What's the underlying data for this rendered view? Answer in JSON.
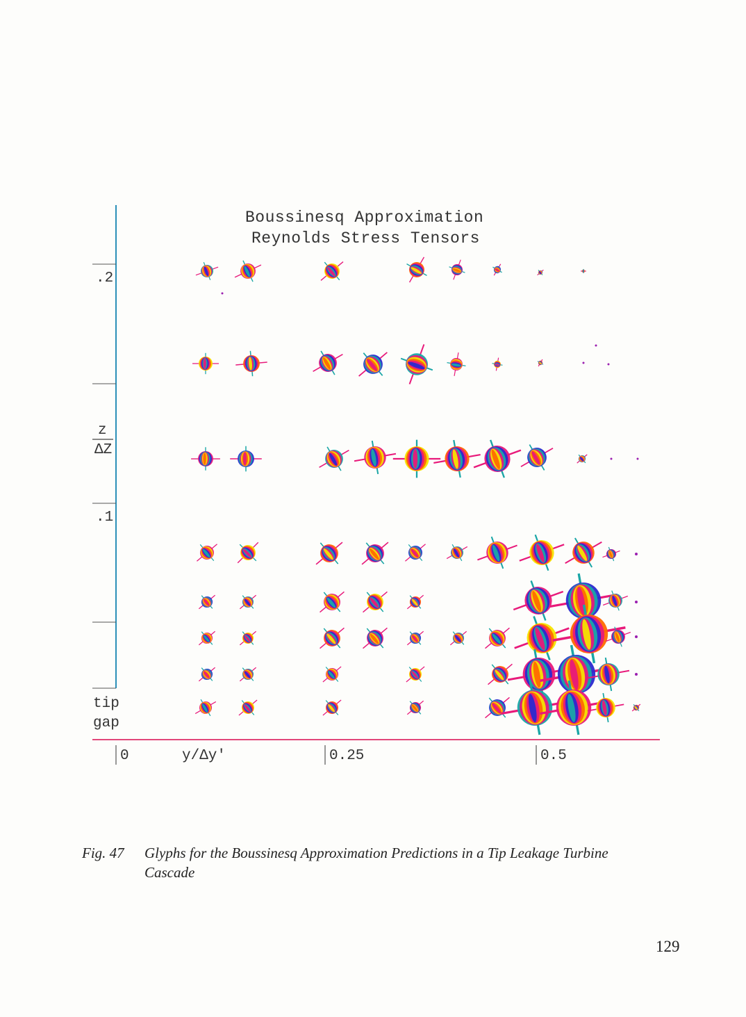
{
  "figure": {
    "title_line1": "Boussinesq Approximation",
    "title_line2": "Reynolds Stress Tensors",
    "y_tick_top": ".2",
    "y_tick_mid": ".1",
    "y_label_num": "z",
    "y_label_den": "ΔZ",
    "y_label_tip": "tip",
    "y_label_gap": "gap",
    "x_tick_0": "0",
    "x_tick_025": "0.25",
    "x_tick_05": "0.5",
    "x_label": "y/Δy'"
  },
  "glyph_palette": [
    "#1aa6a6",
    "#e8197a",
    "#f5e400",
    "#2a2ad0",
    "#ff6a00",
    "#9b1fb0"
  ],
  "caption": {
    "label": "Fig. 47",
    "text": "Glyphs for the Boussinesq Approximation Predictions in a Tip Leakage Turbine Cascade"
  },
  "page_number": "129"
}
